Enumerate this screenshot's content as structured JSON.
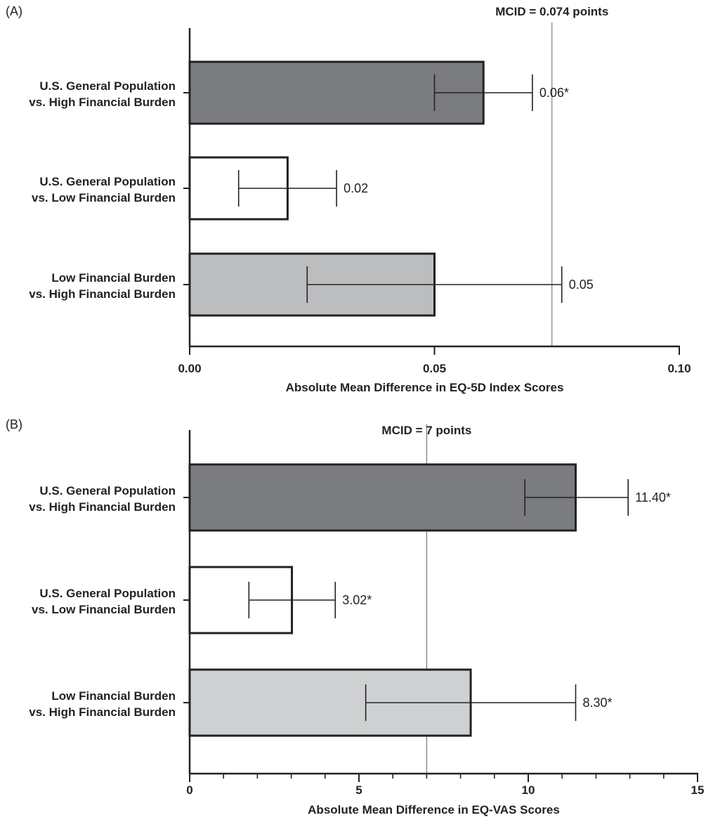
{
  "chart_data": [
    {
      "type": "bar",
      "orientation": "horizontal",
      "panel_label": "(A)",
      "categories": [
        [
          "U.S. General Population",
          "vs. High Financial Burden"
        ],
        [
          "U.S. General Population",
          "vs. Low Financial Burden"
        ],
        [
          "Low Financial Burden",
          "vs. High Financial Burden"
        ]
      ],
      "values": [
        0.06,
        0.02,
        0.05
      ],
      "error_low": [
        0.05,
        0.01,
        0.024
      ],
      "error_high": [
        0.07,
        0.03,
        0.076
      ],
      "data_labels": [
        "0.06*",
        "0.02",
        "0.05"
      ],
      "bar_colors": [
        "#7b7c80",
        "#ffffff",
        "#bcbdbf"
      ],
      "xlabel": "Absolute Mean Difference in EQ-5D Index Scores",
      "xlim": [
        0,
        0.1
      ],
      "xticks": [
        0,
        0.05,
        0.1
      ],
      "xtick_labels": [
        "0.00",
        "0.05",
        "0.10"
      ],
      "minor_ticks": false,
      "reference_line": {
        "value": 0.074,
        "label": "MCID = 0.074 points"
      }
    },
    {
      "type": "bar",
      "orientation": "horizontal",
      "panel_label": "(B)",
      "categories": [
        [
          "U.S. General Population",
          "vs. High Financial Burden"
        ],
        [
          "U.S. General Population",
          "vs. Low Financial Burden"
        ],
        [
          "Low Financial Burden",
          "vs. High Financial Burden"
        ]
      ],
      "values": [
        11.4,
        3.02,
        8.3
      ],
      "error_low": [
        9.9,
        1.75,
        5.2
      ],
      "error_high": [
        12.95,
        4.3,
        11.4
      ],
      "data_labels": [
        "11.40*",
        "3.02*",
        "8.30*"
      ],
      "bar_colors": [
        "#7b7c80",
        "#ffffff",
        "#cfd0d2"
      ],
      "xlabel": "Absolute Mean Difference in EQ-VAS Scores",
      "xlim": [
        0,
        15
      ],
      "xticks": [
        0,
        5,
        10,
        15
      ],
      "xtick_labels": [
        "0",
        "5",
        "10",
        "15"
      ],
      "minor_ticks": true,
      "reference_line": {
        "value": 7,
        "label": "MCID = 7 points"
      }
    }
  ]
}
